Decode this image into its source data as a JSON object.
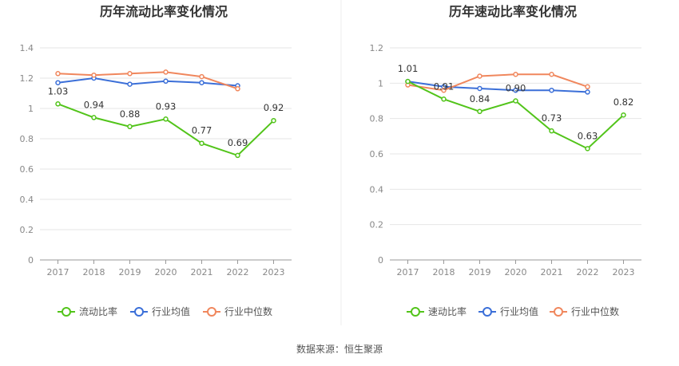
{
  "colors": {
    "primary": "#52c41a",
    "industry_avg": "#3b6fd8",
    "industry_median": "#f0875d"
  },
  "source_text": "数据来源：恒生聚源",
  "chart_data": [
    {
      "type": "line",
      "title": "历年流动比率变化情况",
      "categories": [
        "2017",
        "2018",
        "2019",
        "2020",
        "2021",
        "2022",
        "2023"
      ],
      "ylim": [
        0,
        1.4
      ],
      "yticks": [
        "0",
        "0.2",
        "0.4",
        "0.6",
        "0.8",
        "1",
        "1.2",
        "1.4"
      ],
      "legend_position": "bottom",
      "series": [
        {
          "name": "流动比率",
          "role": "primary",
          "values": [
            1.03,
            0.94,
            0.88,
            0.93,
            0.77,
            0.69,
            0.92
          ],
          "labels": [
            "1.03",
            "0.94",
            "0.88",
            "0.93",
            "0.77",
            "0.69",
            "0.92"
          ]
        },
        {
          "name": "行业均值",
          "role": "industry_avg",
          "values": [
            1.17,
            1.2,
            1.16,
            1.18,
            1.17,
            1.15,
            null
          ]
        },
        {
          "name": "行业中位数",
          "role": "industry_median",
          "values": [
            1.23,
            1.22,
            1.23,
            1.24,
            1.21,
            1.13,
            null
          ]
        }
      ]
    },
    {
      "type": "line",
      "title": "历年速动比率变化情况",
      "categories": [
        "2017",
        "2018",
        "2019",
        "2020",
        "2021",
        "2022",
        "2023"
      ],
      "ylim": [
        0,
        1.2
      ],
      "yticks": [
        "0",
        "0.2",
        "0.4",
        "0.6",
        "0.8",
        "1",
        "1.2"
      ],
      "legend_position": "bottom",
      "series": [
        {
          "name": "速动比率",
          "role": "primary",
          "values": [
            1.01,
            0.91,
            0.84,
            0.9,
            0.73,
            0.63,
            0.82
          ],
          "labels": [
            "1.01",
            "0.91",
            "0.84",
            "0.90",
            "0.73",
            "0.63",
            "0.82"
          ]
        },
        {
          "name": "行业均值",
          "role": "industry_avg",
          "values": [
            1.01,
            0.98,
            0.97,
            0.96,
            0.96,
            0.95,
            null
          ]
        },
        {
          "name": "行业中位数",
          "role": "industry_median",
          "values": [
            0.99,
            0.96,
            1.04,
            1.05,
            1.05,
            0.98,
            null
          ]
        }
      ]
    }
  ]
}
